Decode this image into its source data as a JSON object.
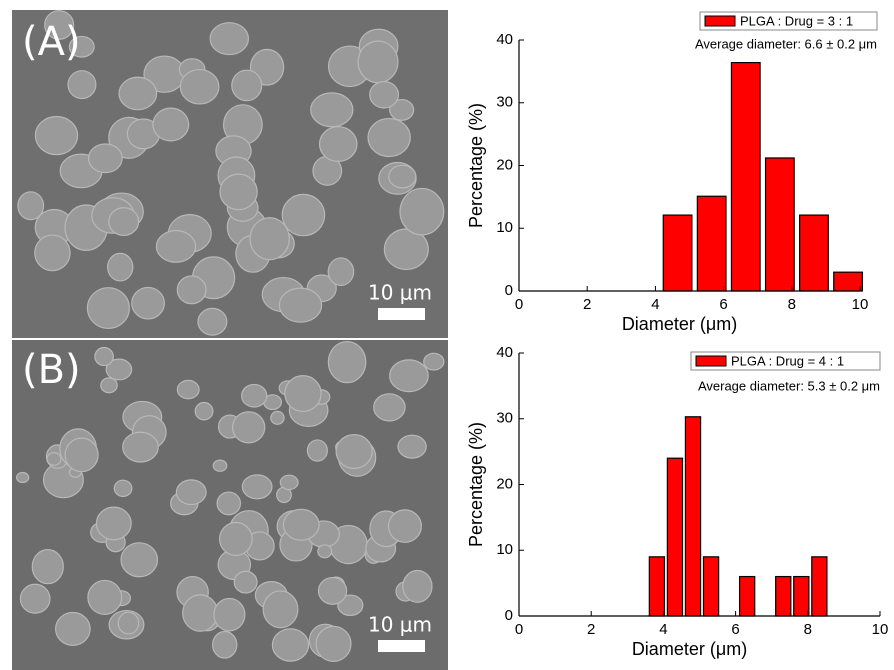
{
  "images": [
    {
      "label": "(A)",
      "scale_bar": "10 μm"
    },
    {
      "label": "(B)",
      "scale_bar": "10 μm"
    }
  ],
  "chart_data": [
    {
      "type": "histogram",
      "xlabel": "Diameter (μm)",
      "ylabel": "Percentage (%)",
      "annotation": "Average diameter: 6.6 ± 0.2 μm",
      "bins": [
        4.15,
        5.15,
        6.15,
        7.15,
        8.15,
        9.15,
        10.15
      ],
      "series": [
        {
          "name": "PLGA : Drug = 3 : 1",
          "color": "#ff0000",
          "values": [
            12.1,
            15.1,
            36.4,
            21.2,
            12.1,
            3
          ]
        }
      ],
      "xlim": [
        0,
        10
      ],
      "ylim": [
        0,
        40
      ],
      "xticks": [
        0,
        2,
        4,
        6,
        8,
        10
      ],
      "yticks": [
        0,
        10,
        20,
        30,
        40
      ],
      "legend": "upper right"
    },
    {
      "type": "histogram",
      "xlabel": "Diameter (μm)",
      "ylabel": "Percentage (%)",
      "annotation": "Average diameter: 5.3 ± 0.2 μm",
      "bins": [
        3.57,
        4.07,
        4.57,
        5.07,
        5.57,
        6.07,
        6.57,
        7.07,
        7.57,
        8.07,
        8.57
      ],
      "series": [
        {
          "name": "PLGA : Drug = 4 : 1",
          "color": "#ff0000",
          "values": [
            9,
            24,
            30.3,
            9,
            0,
            6,
            0,
            6,
            6,
            9
          ]
        }
      ],
      "xlim": [
        0,
        10
      ],
      "ylim": [
        0,
        40
      ],
      "xticks": [
        0,
        2,
        4,
        6,
        8,
        10
      ],
      "yticks": [
        0,
        10,
        20,
        30,
        40
      ],
      "legend": "upper right"
    }
  ]
}
